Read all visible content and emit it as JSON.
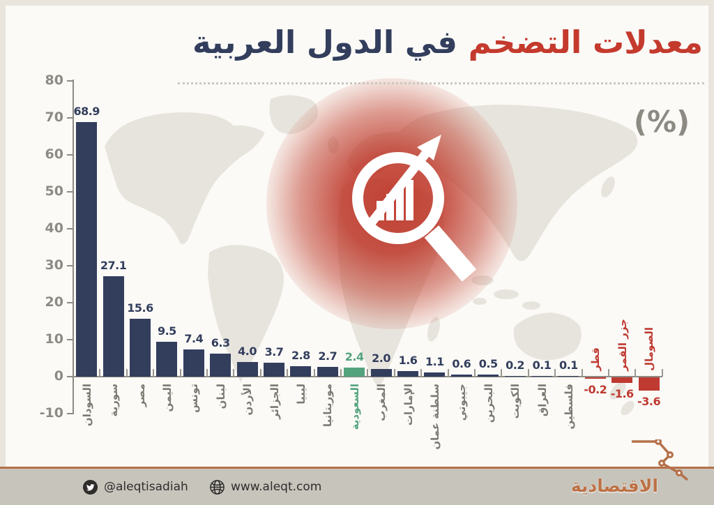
{
  "title": {
    "part_red": "معدلات التضخم",
    "part_navy": " في الدول العربية"
  },
  "unit_label": "(%)",
  "chart_data": {
    "type": "bar",
    "title": "معدلات التضخم في الدول العربية",
    "ylabel": "%",
    "ylim": [
      -10,
      80
    ],
    "yticks": [
      80,
      70,
      60,
      50,
      40,
      30,
      20,
      10,
      0,
      -10
    ],
    "grid": false,
    "categories": [
      "السودان",
      "سورية",
      "مصر",
      "اليمن",
      "تونس",
      "لبنان",
      "الأردن",
      "الجزائر",
      "ليبيا",
      "موريتانيا",
      "السعودية",
      "المغرب",
      "الإمارات",
      "سلطنة عمان",
      "جيبوتي",
      "البحرين",
      "الكويت",
      "العراق",
      "فلسطين",
      "قطر",
      "جزر القمر",
      "الصومال"
    ],
    "values": [
      68.9,
      27.1,
      15.6,
      9.5,
      7.4,
      6.3,
      4.0,
      3.7,
      2.8,
      2.7,
      2.4,
      2.0,
      1.6,
      1.1,
      0.6,
      0.5,
      0.2,
      0.1,
      0.1,
      -0.2,
      -1.6,
      -3.6
    ],
    "highlight_index": 10,
    "colors": {
      "bar": "#333e5d",
      "highlight": "#53a37d",
      "negative": "#bf3a31",
      "axis": "#8d8a84",
      "category_label": "#7c7972"
    }
  },
  "footer": {
    "twitter_handle": "@aleqtisadiah",
    "website": "www.aleqt.com",
    "logo": "الاقتصادية",
    "accent_color": "#b5714a"
  }
}
